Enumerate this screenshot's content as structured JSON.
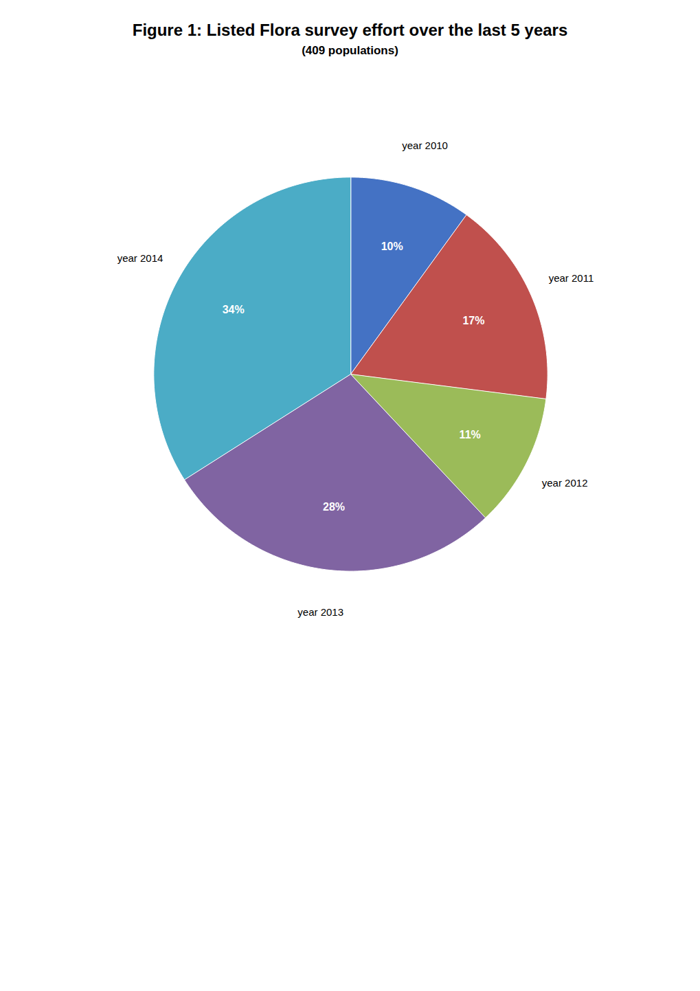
{
  "chart_data": {
    "type": "pie",
    "title": "Figure 1: Listed Flora survey effort over the last 5 years",
    "subtitle": "(409 populations)",
    "categories": [
      "year 2010",
      "year 2011",
      "year 2012",
      "year 2013",
      "year 2014"
    ],
    "values": [
      10,
      17,
      11,
      28,
      34
    ],
    "value_labels": [
      "10%",
      "17%",
      "11%",
      "28%",
      "34%"
    ],
    "colors": [
      "#4472C4",
      "#C0504D",
      "#9BBB59",
      "#8064A2",
      "#4BACC6"
    ],
    "data_labels": true
  }
}
